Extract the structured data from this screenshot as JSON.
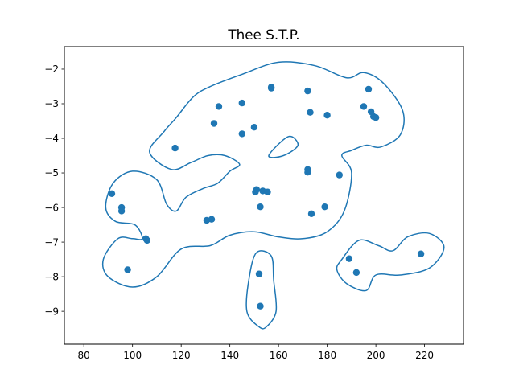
{
  "chart_data": {
    "type": "scatter",
    "title": "Thee S.T.P.",
    "xlabel": "",
    "ylabel": "",
    "xlim": [
      72,
      236
    ],
    "ylim": [
      -9.95,
      -1.35
    ],
    "xticks": [
      80,
      100,
      120,
      140,
      160,
      180,
      200,
      220
    ],
    "yticks": [
      -9,
      -8,
      -7,
      -6,
      -5,
      -4,
      -3,
      -2
    ],
    "xtick_labels": [
      "80",
      "100",
      "120",
      "140",
      "160",
      "180",
      "200",
      "220"
    ],
    "ytick_labels": [
      "−9",
      "−8",
      "−7",
      "−6",
      "−5",
      "−4",
      "−3",
      "−2"
    ],
    "grid": false,
    "color": "#1f77b4",
    "points": [
      {
        "x": 91.5,
        "y": -5.6
      },
      {
        "x": 95.5,
        "y": -6.0
      },
      {
        "x": 95.5,
        "y": -6.1
      },
      {
        "x": 98,
        "y": -7.8
      },
      {
        "x": 105.5,
        "y": -6.9
      },
      {
        "x": 106,
        "y": -6.95
      },
      {
        "x": 117.5,
        "y": -4.28
      },
      {
        "x": 130.5,
        "y": -6.37
      },
      {
        "x": 132.5,
        "y": -6.34
      },
      {
        "x": 133.5,
        "y": -3.57
      },
      {
        "x": 135.5,
        "y": -3.08
      },
      {
        "x": 145,
        "y": -2.98
      },
      {
        "x": 145,
        "y": -3.87
      },
      {
        "x": 150,
        "y": -3.68
      },
      {
        "x": 150.5,
        "y": -5.55
      },
      {
        "x": 151,
        "y": -5.48
      },
      {
        "x": 152.5,
        "y": -5.98
      },
      {
        "x": 152,
        "y": -7.92
      },
      {
        "x": 152.5,
        "y": -8.85
      },
      {
        "x": 153.5,
        "y": -5.52
      },
      {
        "x": 155.5,
        "y": -5.55
      },
      {
        "x": 157,
        "y": -2.52
      },
      {
        "x": 157,
        "y": -2.55
      },
      {
        "x": 172,
        "y": -2.63
      },
      {
        "x": 172,
        "y": -4.9
      },
      {
        "x": 172,
        "y": -4.98
      },
      {
        "x": 173,
        "y": -3.25
      },
      {
        "x": 173.5,
        "y": -6.18
      },
      {
        "x": 179,
        "y": -5.98
      },
      {
        "x": 180,
        "y": -3.33
      },
      {
        "x": 185,
        "y": -5.06
      },
      {
        "x": 189,
        "y": -7.48
      },
      {
        "x": 192,
        "y": -7.88
      },
      {
        "x": 195,
        "y": -3.08
      },
      {
        "x": 197,
        "y": -2.58
      },
      {
        "x": 198,
        "y": -3.23
      },
      {
        "x": 199,
        "y": -3.37
      },
      {
        "x": 200,
        "y": -3.4
      },
      {
        "x": 218.5,
        "y": -7.34
      }
    ],
    "contours": [
      [
        [
          104,
          -6.9
        ],
        [
          101,
          -6.5
        ],
        [
          93,
          -6.4
        ],
        [
          89,
          -6.0
        ],
        [
          92,
          -5.3
        ],
        [
          100,
          -4.95
        ],
        [
          110,
          -5.2
        ],
        [
          114,
          -5.9
        ],
        [
          118,
          -6.1
        ],
        [
          122,
          -5.7
        ],
        [
          129,
          -5.45
        ],
        [
          135,
          -5.3
        ],
        [
          140,
          -4.95
        ],
        [
          144,
          -4.75
        ],
        [
          138,
          -4.5
        ],
        [
          131,
          -4.5
        ],
        [
          124,
          -4.7
        ],
        [
          116,
          -4.9
        ],
        [
          107,
          -4.4
        ],
        [
          113,
          -3.8
        ],
        [
          118,
          -3.4
        ],
        [
          125,
          -2.8
        ],
        [
          132,
          -2.5
        ],
        [
          145,
          -2.15
        ],
        [
          160,
          -1.8
        ],
        [
          175,
          -1.9
        ],
        [
          188,
          -2.25
        ],
        [
          195,
          -2.1
        ],
        [
          203,
          -2.4
        ],
        [
          211,
          -3.2
        ],
        [
          210,
          -3.9
        ],
        [
          202,
          -4.25
        ],
        [
          196,
          -4.2
        ],
        [
          190,
          -4.35
        ],
        [
          186,
          -4.5
        ],
        [
          190,
          -5.0
        ],
        [
          187,
          -6.1
        ],
        [
          180,
          -6.7
        ],
        [
          170,
          -6.9
        ],
        [
          160,
          -6.85
        ],
        [
          150,
          -6.7
        ],
        [
          140,
          -6.8
        ],
        [
          132,
          -7.1
        ],
        [
          120,
          -7.2
        ],
        [
          110,
          -8.0
        ],
        [
          100,
          -8.3
        ],
        [
          90,
          -8.0
        ],
        [
          88,
          -7.5
        ],
        [
          94,
          -6.9
        ],
        [
          100,
          -6.9
        ]
      ],
      [
        [
          156,
          -4.5
        ],
        [
          164,
          -3.95
        ],
        [
          168,
          -4.2
        ],
        [
          162,
          -4.5
        ]
      ],
      [
        [
          152,
          -9.45
        ],
        [
          147,
          -9.0
        ],
        [
          148,
          -8.0
        ],
        [
          151,
          -7.3
        ],
        [
          157,
          -7.4
        ],
        [
          158,
          -8.1
        ],
        [
          159,
          -9.0
        ],
        [
          155,
          -9.45
        ]
      ],
      [
        [
          186,
          -7.5
        ],
        [
          193,
          -6.95
        ],
        [
          201,
          -7.1
        ],
        [
          207,
          -7.25
        ],
        [
          213,
          -6.85
        ],
        [
          222,
          -6.75
        ],
        [
          228,
          -7.15
        ],
        [
          222,
          -7.75
        ],
        [
          210,
          -7.95
        ],
        [
          200,
          -7.95
        ],
        [
          196,
          -8.4
        ],
        [
          188,
          -8.2
        ],
        [
          184,
          -7.8
        ]
      ]
    ]
  }
}
